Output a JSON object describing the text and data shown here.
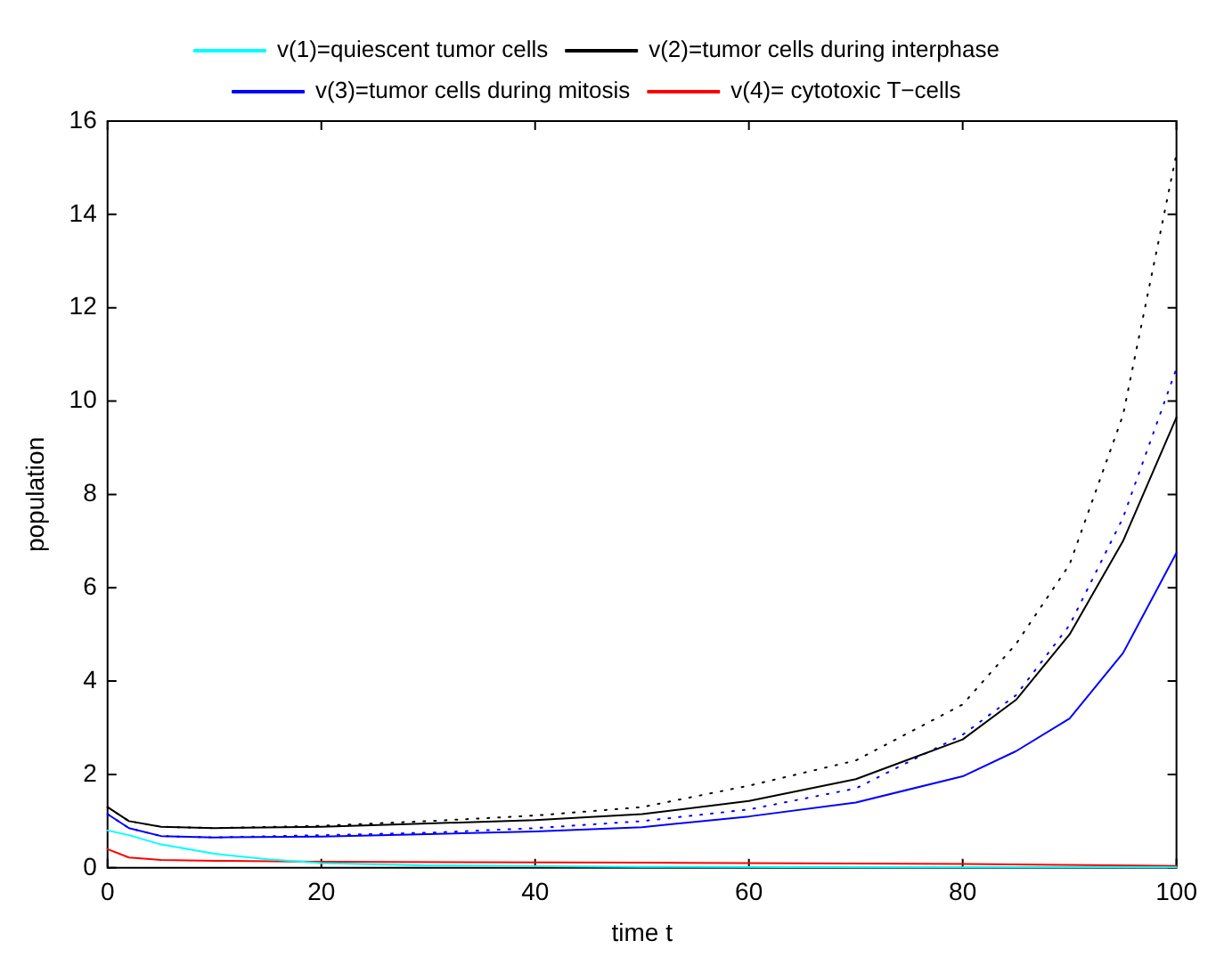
{
  "chart_data": {
    "type": "line",
    "xlabel": "time t",
    "ylabel": "population",
    "xlim": [
      0,
      100
    ],
    "ylim": [
      0,
      16
    ],
    "xticks": [
      0,
      20,
      40,
      60,
      80,
      100
    ],
    "yticks": [
      0,
      2,
      4,
      6,
      8,
      10,
      12,
      14,
      16
    ],
    "grid": false,
    "legend": "top",
    "marker": "none",
    "series": [
      {
        "name": "v(1)=quiescent tumor cells",
        "color": "#00ffff",
        "x": [
          0,
          2,
          5,
          10,
          15,
          20,
          30,
          50,
          75,
          100
        ],
        "values": [
          0.8,
          0.7,
          0.5,
          0.3,
          0.18,
          0.1,
          0.05,
          0.02,
          0.01,
          0.01
        ]
      },
      {
        "name": "v(2)=tumor cells during interphase",
        "color": "#000000",
        "x": [
          0,
          2,
          5,
          10,
          20,
          30,
          40,
          50,
          60,
          70,
          80,
          85,
          90,
          95,
          100
        ],
        "values": [
          1.3,
          1.0,
          0.88,
          0.85,
          0.88,
          0.95,
          1.02,
          1.15,
          1.43,
          1.9,
          2.75,
          3.6,
          5.0,
          7.0,
          9.65
        ]
      },
      {
        "name": "v(3)=tumor cells during mitosis",
        "color": "#0000ff",
        "x": [
          0,
          2,
          5,
          10,
          20,
          30,
          40,
          50,
          60,
          70,
          80,
          85,
          90,
          95,
          100
        ],
        "values": [
          1.15,
          0.85,
          0.68,
          0.65,
          0.67,
          0.72,
          0.78,
          0.87,
          1.1,
          1.4,
          1.96,
          2.5,
          3.2,
          4.6,
          6.75
        ]
      },
      {
        "name": "v(4)= cytotoxic T−cells",
        "color": "#ff0000",
        "x": [
          0,
          2,
          5,
          10,
          20,
          50,
          80,
          100
        ],
        "values": [
          0.4,
          0.22,
          0.17,
          0.15,
          0.13,
          0.11,
          0.08,
          0.04
        ]
      },
      {
        "color": "#000000",
        "line_style": "dotted",
        "x": [
          0,
          2,
          5,
          10,
          20,
          30,
          40,
          50,
          60,
          70,
          80,
          85,
          90,
          95,
          100
        ],
        "values": [
          1.3,
          1.0,
          0.88,
          0.85,
          0.9,
          1.0,
          1.12,
          1.3,
          1.76,
          2.3,
          3.5,
          4.8,
          6.5,
          9.7,
          15.3
        ]
      },
      {
        "color": "#0000ff",
        "line_style": "dotted",
        "x": [
          0,
          2,
          5,
          10,
          20,
          30,
          40,
          50,
          60,
          70,
          80,
          85,
          90,
          95,
          100
        ],
        "values": [
          1.15,
          0.85,
          0.68,
          0.65,
          0.7,
          0.75,
          0.85,
          1.0,
          1.25,
          1.7,
          2.85,
          3.7,
          5.2,
          7.5,
          10.7
        ]
      }
    ]
  }
}
